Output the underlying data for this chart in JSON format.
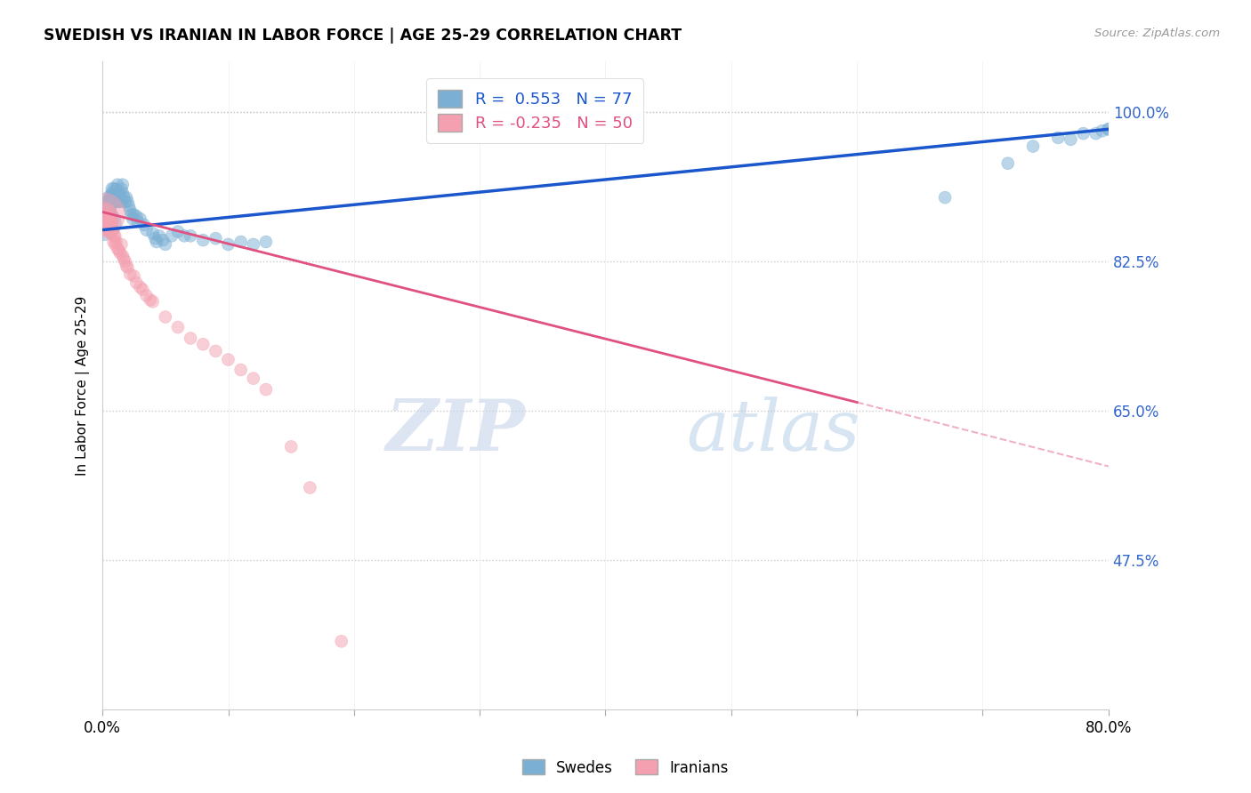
{
  "title": "SWEDISH VS IRANIAN IN LABOR FORCE | AGE 25-29 CORRELATION CHART",
  "source": "Source: ZipAtlas.com",
  "ylabel": "In Labor Force | Age 25-29",
  "xlim": [
    0.0,
    0.8
  ],
  "ylim": [
    0.3,
    1.06
  ],
  "yticks": [
    0.475,
    0.65,
    0.825,
    1.0
  ],
  "ytick_labels": [
    "47.5%",
    "65.0%",
    "82.5%",
    "100.0%"
  ],
  "xticks": [
    0.0,
    0.1,
    0.2,
    0.3,
    0.4,
    0.5,
    0.6,
    0.7,
    0.8
  ],
  "swedish_R": 0.553,
  "swedish_N": 77,
  "iranian_R": -0.235,
  "iranian_N": 50,
  "swedish_color": "#7BAFD4",
  "iranian_color": "#F4A0B0",
  "trend_blue": "#1A56CC",
  "trend_pink": "#E05080",
  "watermark_zip": "ZIP",
  "watermark_atlas": "atlas",
  "background_color": "#FFFFFF",
  "swedish_x": [
    0.001,
    0.002,
    0.003,
    0.003,
    0.004,
    0.004,
    0.004,
    0.005,
    0.005,
    0.005,
    0.005,
    0.006,
    0.006,
    0.007,
    0.007,
    0.008,
    0.008,
    0.008,
    0.009,
    0.009,
    0.01,
    0.01,
    0.01,
    0.011,
    0.011,
    0.012,
    0.012,
    0.013,
    0.013,
    0.014,
    0.015,
    0.015,
    0.016,
    0.016,
    0.017,
    0.018,
    0.019,
    0.02,
    0.021,
    0.022,
    0.023,
    0.024,
    0.025,
    0.027,
    0.028,
    0.03,
    0.033,
    0.035,
    0.04,
    0.042,
    0.043,
    0.045,
    0.048,
    0.05,
    0.055,
    0.06,
    0.065,
    0.07,
    0.08,
    0.09,
    0.1,
    0.11,
    0.12,
    0.13,
    0.67,
    0.72,
    0.74,
    0.76,
    0.77,
    0.78,
    0.79,
    0.795,
    0.8,
    0.8,
    0.81,
    0.815,
    0.82
  ],
  "swedish_y": [
    0.87,
    0.88,
    0.88,
    0.875,
    0.885,
    0.88,
    0.875,
    0.895,
    0.89,
    0.885,
    0.875,
    0.9,
    0.895,
    0.9,
    0.895,
    0.91,
    0.905,
    0.895,
    0.91,
    0.895,
    0.905,
    0.9,
    0.895,
    0.91,
    0.9,
    0.915,
    0.895,
    0.905,
    0.895,
    0.9,
    0.91,
    0.895,
    0.915,
    0.905,
    0.9,
    0.895,
    0.9,
    0.895,
    0.89,
    0.885,
    0.88,
    0.875,
    0.88,
    0.878,
    0.872,
    0.875,
    0.868,
    0.862,
    0.858,
    0.852,
    0.848,
    0.855,
    0.85,
    0.845,
    0.855,
    0.86,
    0.855,
    0.855,
    0.85,
    0.852,
    0.845,
    0.848,
    0.845,
    0.848,
    0.9,
    0.94,
    0.96,
    0.97,
    0.968,
    0.975,
    0.975,
    0.978,
    0.98,
    0.98,
    0.985,
    0.988,
    0.99
  ],
  "swedish_sizes": [
    800,
    200,
    200,
    200,
    200,
    200,
    200,
    150,
    150,
    150,
    150,
    150,
    150,
    120,
    120,
    120,
    120,
    120,
    100,
    100,
    100,
    100,
    100,
    100,
    100,
    100,
    100,
    100,
    100,
    100,
    100,
    100,
    100,
    100,
    100,
    100,
    100,
    100,
    100,
    100,
    100,
    100,
    100,
    100,
    100,
    100,
    100,
    100,
    100,
    100,
    100,
    100,
    100,
    100,
    100,
    100,
    100,
    100,
    100,
    100,
    100,
    100,
    100,
    100,
    100,
    100,
    100,
    100,
    100,
    100,
    100,
    100,
    100,
    100,
    100,
    100,
    100
  ],
  "iranian_x": [
    0.001,
    0.001,
    0.002,
    0.002,
    0.002,
    0.003,
    0.003,
    0.004,
    0.004,
    0.005,
    0.005,
    0.006,
    0.006,
    0.007,
    0.007,
    0.008,
    0.009,
    0.009,
    0.01,
    0.01,
    0.011,
    0.012,
    0.013,
    0.014,
    0.015,
    0.016,
    0.017,
    0.018,
    0.019,
    0.02,
    0.022,
    0.025,
    0.027,
    0.03,
    0.032,
    0.035,
    0.038,
    0.04,
    0.05,
    0.06,
    0.07,
    0.08,
    0.09,
    0.1,
    0.11,
    0.12,
    0.13,
    0.15,
    0.165,
    0.19
  ],
  "iranian_y": [
    0.88,
    0.875,
    0.882,
    0.876,
    0.87,
    0.878,
    0.87,
    0.875,
    0.865,
    0.87,
    0.86,
    0.875,
    0.862,
    0.87,
    0.86,
    0.862,
    0.855,
    0.848,
    0.855,
    0.845,
    0.848,
    0.84,
    0.838,
    0.835,
    0.845,
    0.832,
    0.828,
    0.825,
    0.82,
    0.818,
    0.81,
    0.808,
    0.8,
    0.795,
    0.792,
    0.785,
    0.78,
    0.778,
    0.76,
    0.748,
    0.735,
    0.728,
    0.72,
    0.71,
    0.698,
    0.688,
    0.675,
    0.608,
    0.56,
    0.38
  ],
  "iranian_sizes": [
    1200,
    600,
    300,
    200,
    150,
    150,
    150,
    150,
    150,
    130,
    130,
    120,
    120,
    120,
    120,
    110,
    110,
    110,
    100,
    100,
    100,
    100,
    100,
    100,
    100,
    100,
    100,
    100,
    100,
    100,
    100,
    100,
    100,
    100,
    100,
    100,
    100,
    100,
    100,
    100,
    100,
    100,
    100,
    100,
    100,
    100,
    100,
    100,
    100,
    100
  ],
  "trend_blue_x0": 0.0,
  "trend_blue_y0": 0.862,
  "trend_blue_x1": 0.8,
  "trend_blue_y1": 0.98,
  "trend_pink_solid_x0": 0.0,
  "trend_pink_solid_y0": 0.883,
  "trend_pink_solid_x1": 0.6,
  "trend_pink_solid_y1": 0.66,
  "trend_pink_dash_x0": 0.6,
  "trend_pink_dash_y0": 0.66,
  "trend_pink_dash_x1": 0.8,
  "trend_pink_dash_y1": 0.585
}
